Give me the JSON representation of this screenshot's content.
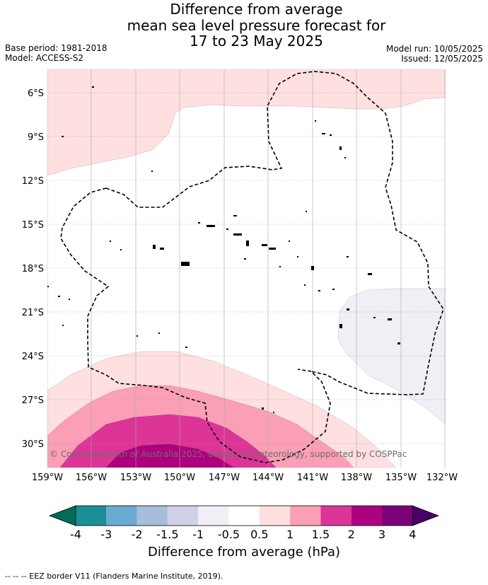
{
  "title": {
    "line1": "Difference from average",
    "line2": "mean sea level pressure forecast for",
    "line3": "17 to 23 May 2025"
  },
  "meta": {
    "base_period": "Base period: 1981-2018",
    "model": "Model: ACCESS-S2",
    "model_run": "Model run: 10/05/2025",
    "issued": "Issued: 12/05/2025"
  },
  "map": {
    "lon_labels": [
      "159°W",
      "156°W",
      "153°W",
      "150°W",
      "147°W",
      "144°W",
      "141°W",
      "138°W",
      "135°W",
      "132°W"
    ],
    "lat_labels": [
      "6°S",
      "9°S",
      "12°S",
      "15°S",
      "18°S",
      "21°S",
      "24°S",
      "27°S",
      "30°S"
    ],
    "copyright": "© Commonwealth of Australia 2025, Bureau of Meteorology, supported by COSPPac"
  },
  "colorbar": {
    "title": "Difference from average (hPa)",
    "tick_labels": [
      "-4",
      "-3",
      "-2",
      "-1.5",
      "-1",
      "-0.5",
      "0.5",
      "1",
      "1.5",
      "2",
      "3",
      "4"
    ],
    "colors": [
      "#1a9096",
      "#6aabd2",
      "#a6bddb",
      "#d0d1e6",
      "#f1eef6",
      "#ffffff",
      "#fee0e0",
      "#fa9fb5",
      "#dd3497",
      "#ae017e",
      "#7a0177"
    ],
    "under_color": "#016c59",
    "over_color": "#49006a"
  },
  "footnote": "--  --  -- EEZ border V11 (Flanders Marine Institute, 2019)."
}
